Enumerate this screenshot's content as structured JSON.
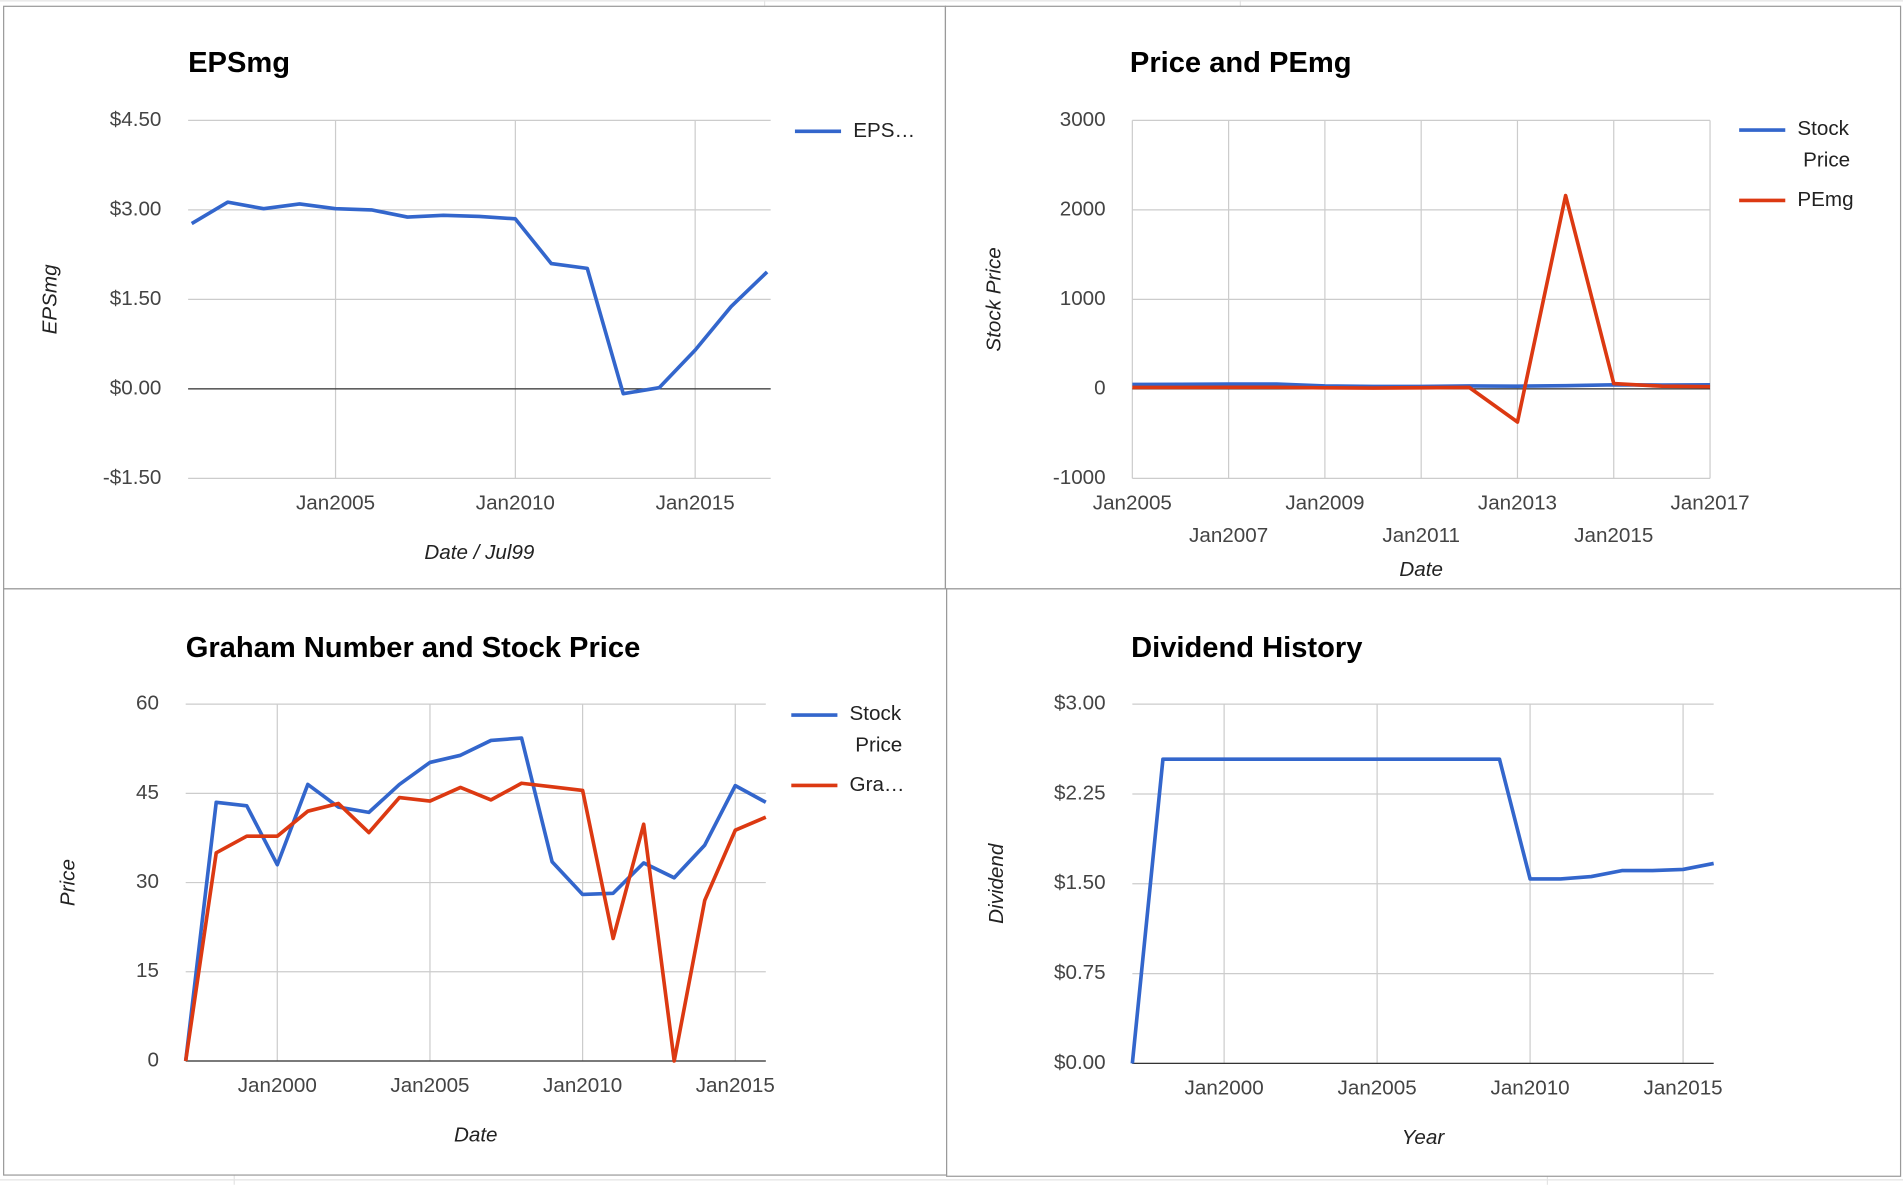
{
  "chart_data": [
    {
      "type": "line",
      "title": "EPSmg",
      "x_label": "Date / Jul99",
      "y_label": "EPSmg",
      "x": [
        2001,
        2002,
        2003,
        2004,
        2005,
        2006,
        2007,
        2008,
        2009,
        2010,
        2011,
        2012,
        2013,
        2014,
        2015,
        2016,
        2017
      ],
      "series": [
        {
          "name": "EPS…",
          "color": "#3366cc",
          "values": [
            2.77,
            3.13,
            3.02,
            3.1,
            3.02,
            3.0,
            2.88,
            2.91,
            2.89,
            2.85,
            2.1,
            2.02,
            -0.08,
            0.02,
            0.65,
            1.38,
            1.96
          ]
        }
      ],
      "xlim": [
        2000.9,
        2017.1
      ],
      "ylim": [
        -1.5,
        4.5
      ],
      "xticks": [
        {
          "value": 2005,
          "label": "Jan2005"
        },
        {
          "value": 2010,
          "label": "Jan2010"
        },
        {
          "value": 2015,
          "label": "Jan2015"
        }
      ],
      "yticks": [
        {
          "value": -1.5,
          "label": "-$1.50"
        },
        {
          "value": 0,
          "label": "$0.00"
        },
        {
          "value": 1.5,
          "label": "$1.50"
        },
        {
          "value": 3,
          "label": "$3.00"
        },
        {
          "value": 4.5,
          "label": "$4.50"
        }
      ],
      "grid": true,
      "legend": "right"
    },
    {
      "type": "line",
      "title": "Price and PEmg",
      "x_label": "Date",
      "y_label": "Stock Price",
      "x": [
        2005,
        2006,
        2007,
        2008,
        2009,
        2010,
        2011,
        2012,
        2013,
        2014,
        2015,
        2016,
        2017
      ],
      "series": [
        {
          "name": "Stock Price",
          "color": "#3366cc",
          "values": [
            50,
            51,
            54,
            54,
            33,
            28,
            28,
            33,
            31,
            36,
            46,
            43,
            45
          ]
        },
        {
          "name": "PEmg",
          "color": "#dc3912",
          "values": [
            16,
            16,
            18,
            18,
            12,
            10,
            13,
            16,
            -370,
            2160,
            60,
            30,
            25
          ]
        }
      ],
      "xlim": [
        2005,
        2017
      ],
      "ylim": [
        -1000,
        3000
      ],
      "xticks": [
        {
          "value": 2005,
          "label": "Jan2005"
        },
        {
          "value": 2007,
          "label": "Jan2007"
        },
        {
          "value": 2009,
          "label": "Jan2009"
        },
        {
          "value": 2011,
          "label": "Jan2011"
        },
        {
          "value": 2013,
          "label": "Jan2013"
        },
        {
          "value": 2015,
          "label": "Jan2015"
        },
        {
          "value": 2017,
          "label": "Jan2017"
        }
      ],
      "yticks": [
        -1000,
        0,
        1000,
        2000,
        3000
      ],
      "grid": true,
      "legend": "right"
    },
    {
      "type": "line",
      "title": "Graham Number and Stock Price",
      "x_label": "Date",
      "y_label": "Price",
      "x": [
        1997,
        1998,
        1999,
        2000,
        2001,
        2002,
        2003,
        2004,
        2005,
        2006,
        2007,
        2008,
        2009,
        2010,
        2011,
        2012,
        2013,
        2014,
        2015,
        2016
      ],
      "series": [
        {
          "name": "Stock Price",
          "color": "#3366cc",
          "values": [
            0,
            43.5,
            42.9,
            33,
            46.5,
            42.7,
            41.8,
            46.5,
            50.2,
            51.4,
            53.9,
            54.3,
            33.5,
            28,
            28.2,
            33.3,
            30.8,
            36.3,
            46.3,
            43.5
          ]
        },
        {
          "name": "Gra…",
          "color": "#dc3912",
          "values": [
            0,
            35,
            37.8,
            37.8,
            42,
            43.3,
            38.4,
            44.3,
            43.7,
            46,
            43.9,
            46.7,
            46.1,
            45.5,
            20.6,
            39.8,
            0,
            27,
            38.8,
            41
          ]
        }
      ],
      "xlim": [
        1997,
        2016
      ],
      "ylim": [
        0,
        60
      ],
      "xticks": [
        {
          "value": 2000,
          "label": "Jan2000"
        },
        {
          "value": 2005,
          "label": "Jan2005"
        },
        {
          "value": 2010,
          "label": "Jan2010"
        },
        {
          "value": 2015,
          "label": "Jan2015"
        }
      ],
      "yticks": [
        0,
        15,
        30,
        45,
        60
      ],
      "grid": true,
      "legend": "right"
    },
    {
      "type": "line",
      "title": "Dividend History",
      "x_label": "Year",
      "y_label": "Dividend",
      "x": [
        1997,
        1998,
        1999,
        2000,
        2001,
        2002,
        2003,
        2004,
        2005,
        2006,
        2007,
        2008,
        2009,
        2010,
        2011,
        2012,
        2013,
        2014,
        2015,
        2016
      ],
      "series": [
        {
          "name": "Dividend",
          "color": "#3366cc",
          "values": [
            0,
            2.54,
            2.54,
            2.54,
            2.54,
            2.54,
            2.54,
            2.54,
            2.54,
            2.54,
            2.54,
            2.54,
            2.54,
            1.54,
            1.54,
            1.56,
            1.61,
            1.61,
            1.62,
            1.67
          ]
        }
      ],
      "xlim": [
        1997,
        2016
      ],
      "ylim": [
        0,
        3
      ],
      "xticks": [
        {
          "value": 2000,
          "label": "Jan2000"
        },
        {
          "value": 2005,
          "label": "Jan2005"
        },
        {
          "value": 2010,
          "label": "Jan2010"
        },
        {
          "value": 2015,
          "label": "Jan2015"
        }
      ],
      "yticks": [
        {
          "value": 0,
          "label": "$0.00"
        },
        {
          "value": 0.75,
          "label": "$0.75"
        },
        {
          "value": 1.5,
          "label": "$1.50"
        },
        {
          "value": 2.25,
          "label": "$2.25"
        },
        {
          "value": 3,
          "label": "$3.00"
        }
      ],
      "grid": true
    }
  ]
}
